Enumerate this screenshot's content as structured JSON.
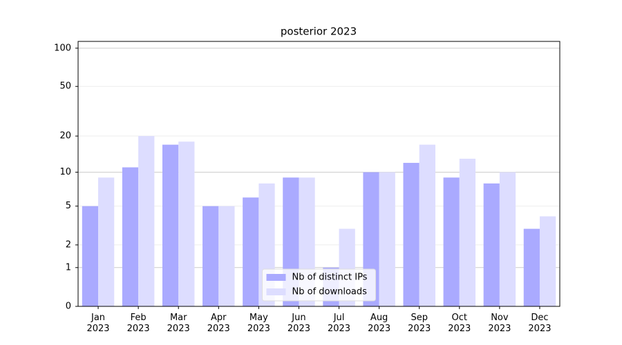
{
  "chart_data": {
    "type": "bar",
    "title": "posterior 2023",
    "scale": "log1p",
    "categories": [
      "Jan\n2023",
      "Feb\n2023",
      "Mar\n2023",
      "Apr\n2023",
      "May\n2023",
      "Jun\n2023",
      "Jul\n2023",
      "Aug\n2023",
      "Sep\n2023",
      "Oct\n2023",
      "Nov\n2023",
      "Dec\n2023"
    ],
    "series": [
      {
        "name": "Nb of distinct IPs",
        "color": "#aaaaff",
        "values": [
          5,
          11,
          17,
          5,
          6,
          9,
          1,
          10,
          12,
          9,
          8,
          3
        ]
      },
      {
        "name": "Nb of downloads",
        "color": "#ddddff",
        "values": [
          9,
          20,
          18,
          5,
          8,
          9,
          3,
          10,
          17,
          13,
          10,
          4
        ]
      }
    ],
    "ylim": [
      0,
      113
    ],
    "yticks": [
      0,
      1,
      2,
      5,
      10,
      20,
      50,
      100
    ],
    "grid": true,
    "legend": "lower center"
  }
}
